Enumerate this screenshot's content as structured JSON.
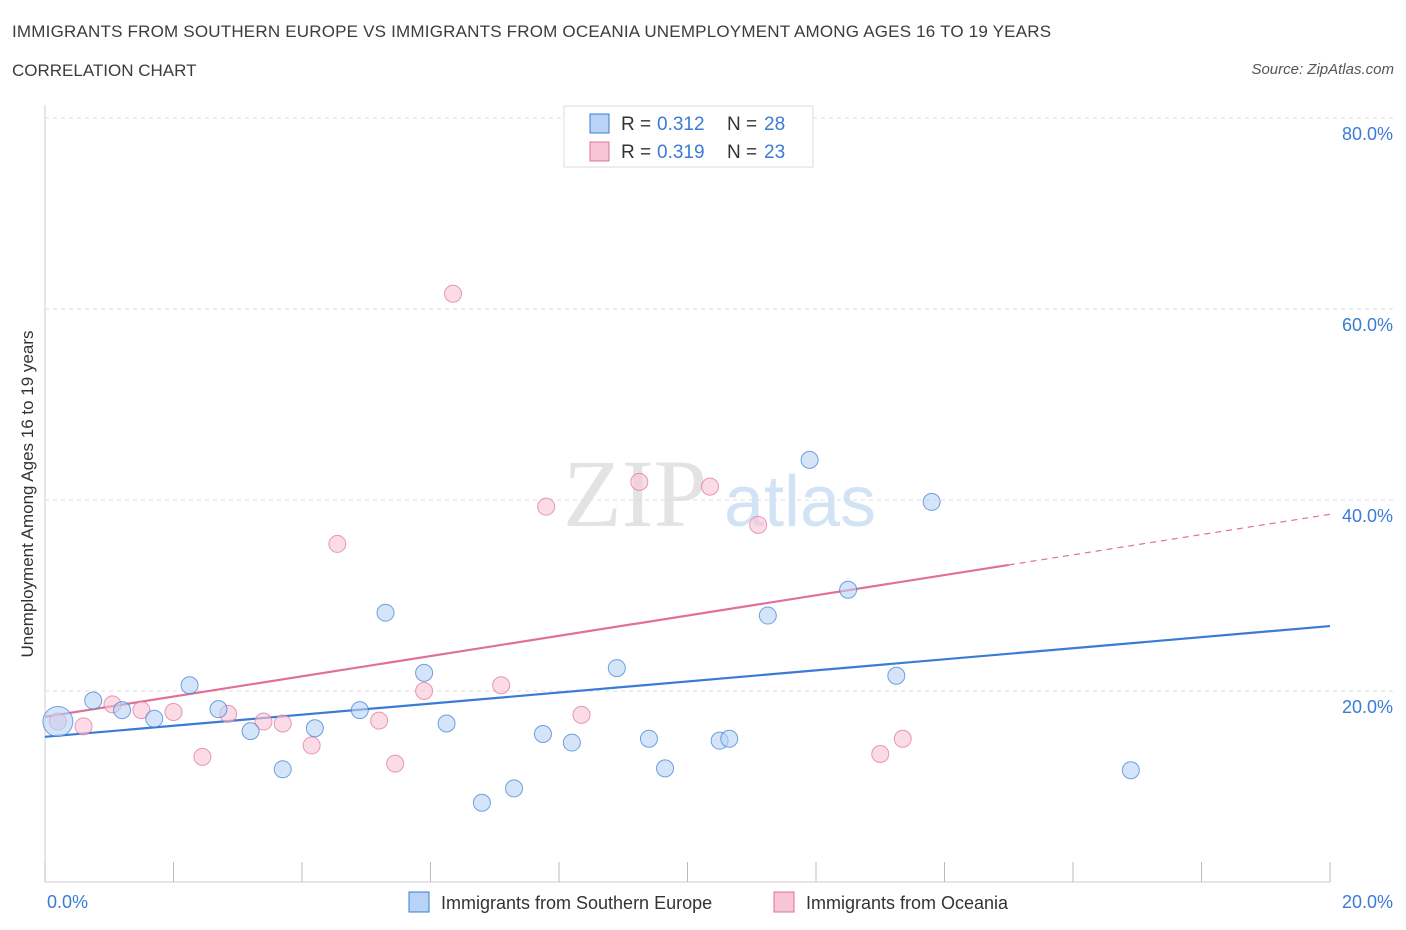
{
  "header": {
    "title": "IMMIGRANTS FROM SOUTHERN EUROPE VS IMMIGRANTS FROM OCEANIA UNEMPLOYMENT AMONG AGES 16 TO 19 YEARS",
    "subtitle": "CORRELATION CHART",
    "source": "Source: ZipAtlas.com"
  },
  "watermark": {
    "zip": "ZIP",
    "atlas": "atlas"
  },
  "legend_top": {
    "rows": [
      {
        "r_label": "R =",
        "r_value": "0.312",
        "n_label": "N =",
        "n_value": "28"
      },
      {
        "r_label": "R =",
        "r_value": "0.319",
        "n_label": "N =",
        "n_value": "23"
      }
    ]
  },
  "colors": {
    "blue": "#3a7bd5",
    "blue_fill": "#b8d3f5",
    "pink": "#e07099",
    "pink_fill": "#f8c5d6",
    "grid": "#dddddd"
  },
  "chart_data": {
    "type": "scatter",
    "title": "IMMIGRANTS FROM SOUTHERN EUROPE VS IMMIGRANTS FROM OCEANIA UNEMPLOYMENT AMONG AGES 16 TO 19 YEARS",
    "xlabel": "",
    "ylabel": "Unemployment Among Ages 16 to 19 years",
    "xlim": [
      0,
      20
    ],
    "ylim": [
      0,
      80
    ],
    "x_tick_labels": [
      "0.0%",
      "20.0%"
    ],
    "y_ticks": [
      20,
      40,
      60,
      80
    ],
    "y_tick_labels": [
      "20.0%",
      "40.0%",
      "60.0%",
      "80.0%"
    ],
    "series": [
      {
        "name": "Immigrants from Southern Europe",
        "color": "#3a7bd5",
        "fill": "#b8d3f5",
        "r": 0.312,
        "n": 28,
        "trend": {
          "x0": 0,
          "y0": 15.2,
          "x1": 20,
          "y1": 26.8
        },
        "points": [
          {
            "x": 0.2,
            "y": 16.8,
            "big": true
          },
          {
            "x": 0.75,
            "y": 19.0
          },
          {
            "x": 1.2,
            "y": 18.0
          },
          {
            "x": 1.7,
            "y": 17.1
          },
          {
            "x": 2.25,
            "y": 20.6
          },
          {
            "x": 2.7,
            "y": 18.1
          },
          {
            "x": 3.2,
            "y": 15.8
          },
          {
            "x": 3.7,
            "y": 11.8
          },
          {
            "x": 4.2,
            "y": 16.1
          },
          {
            "x": 4.9,
            "y": 18.0
          },
          {
            "x": 5.3,
            "y": 28.2
          },
          {
            "x": 5.9,
            "y": 21.9
          },
          {
            "x": 6.25,
            "y": 16.6
          },
          {
            "x": 6.8,
            "y": 8.3
          },
          {
            "x": 7.3,
            "y": 9.8
          },
          {
            "x": 7.75,
            "y": 15.5
          },
          {
            "x": 8.2,
            "y": 14.6
          },
          {
            "x": 8.9,
            "y": 22.4
          },
          {
            "x": 9.4,
            "y": 15.0
          },
          {
            "x": 9.65,
            "y": 11.9
          },
          {
            "x": 10.5,
            "y": 14.8
          },
          {
            "x": 10.65,
            "y": 15.0
          },
          {
            "x": 11.25,
            "y": 27.9
          },
          {
            "x": 11.9,
            "y": 44.2
          },
          {
            "x": 12.5,
            "y": 30.6
          },
          {
            "x": 13.25,
            "y": 21.6
          },
          {
            "x": 13.8,
            "y": 39.8
          },
          {
            "x": 16.9,
            "y": 11.7
          }
        ]
      },
      {
        "name": "Immigrants from Oceania",
        "color": "#e07099",
        "fill": "#f8c5d6",
        "r": 0.319,
        "n": 23,
        "trend": {
          "x0": 0,
          "y0": 17.3,
          "x1": 15.0,
          "y1": 33.2
        },
        "trend_dashed_to": {
          "x": 20,
          "y": 38.5
        },
        "points": [
          {
            "x": 0.2,
            "y": 16.8
          },
          {
            "x": 0.6,
            "y": 16.3
          },
          {
            "x": 1.05,
            "y": 18.6
          },
          {
            "x": 1.5,
            "y": 18.0
          },
          {
            "x": 2.0,
            "y": 17.8
          },
          {
            "x": 2.45,
            "y": 13.1
          },
          {
            "x": 2.85,
            "y": 17.6
          },
          {
            "x": 3.4,
            "y": 16.8
          },
          {
            "x": 3.7,
            "y": 16.6
          },
          {
            "x": 4.15,
            "y": 14.3
          },
          {
            "x": 4.55,
            "y": 35.4
          },
          {
            "x": 5.2,
            "y": 16.9
          },
          {
            "x": 5.45,
            "y": 12.4
          },
          {
            "x": 5.9,
            "y": 20.0
          },
          {
            "x": 6.35,
            "y": 61.6
          },
          {
            "x": 7.1,
            "y": 20.6
          },
          {
            "x": 7.8,
            "y": 39.3
          },
          {
            "x": 8.35,
            "y": 17.5
          },
          {
            "x": 9.25,
            "y": 41.9
          },
          {
            "x": 10.35,
            "y": 41.4
          },
          {
            "x": 11.1,
            "y": 37.4
          },
          {
            "x": 13.0,
            "y": 13.4
          },
          {
            "x": 13.35,
            "y": 15.0
          }
        ]
      }
    ]
  }
}
